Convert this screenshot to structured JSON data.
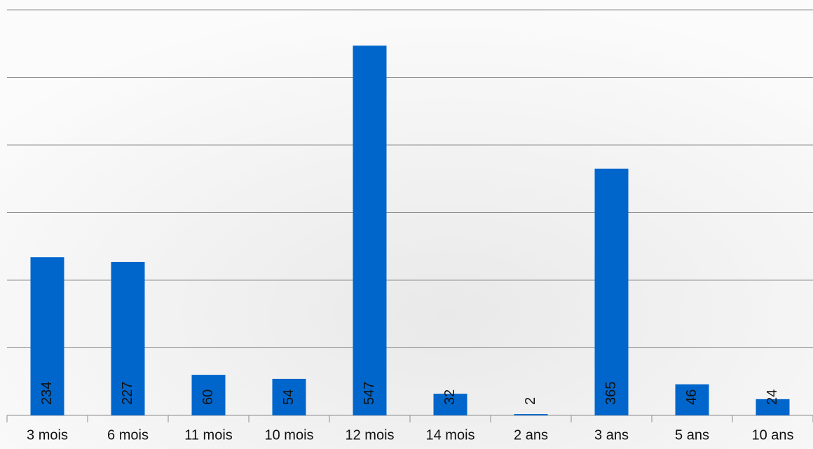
{
  "chart_data": {
    "type": "bar",
    "categories": [
      "3 mois",
      "6 mois",
      "11 mois",
      "10 mois",
      "12 mois",
      "14 mois",
      "2 ans",
      "3 ans",
      "5 ans",
      "10 ans"
    ],
    "values": [
      234,
      227,
      60,
      54,
      547,
      32,
      2,
      365,
      46,
      24
    ],
    "color": "#0066cc",
    "ylim": [
      0,
      600
    ],
    "yticks": [
      0,
      100,
      200,
      300,
      400,
      500,
      600
    ],
    "grid": true,
    "show_tick_labels": false
  }
}
